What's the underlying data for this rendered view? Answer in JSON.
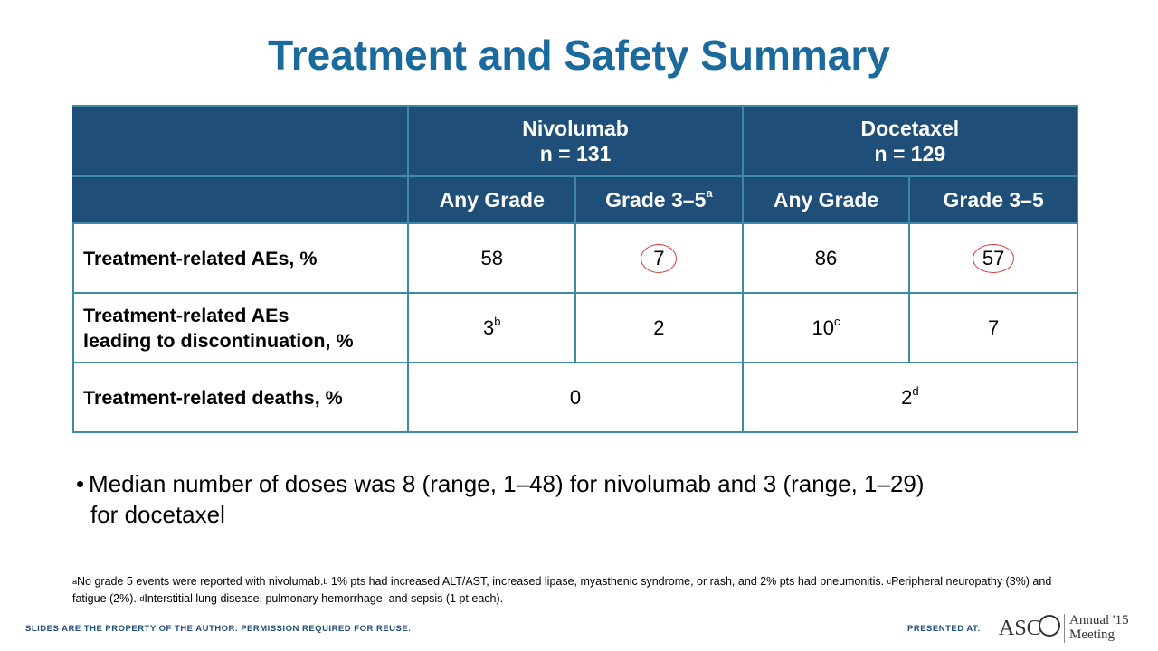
{
  "title": "Treatment and Safety Summary",
  "table": {
    "groups": [
      {
        "name": "Nivolumab",
        "n": "n = 131"
      },
      {
        "name": "Docetaxel",
        "n": "n = 129"
      }
    ],
    "subheaders": [
      {
        "text": "Any Grade",
        "sup": ""
      },
      {
        "text": "Grade 3–5",
        "sup": "a"
      },
      {
        "text": "Any Grade",
        "sup": ""
      },
      {
        "text": "Grade 3–5",
        "sup": ""
      }
    ],
    "rows": [
      {
        "label": "Treatment-related AEs, %",
        "cells": [
          {
            "v": "58",
            "sup": ""
          },
          {
            "v": "7",
            "sup": ""
          },
          {
            "v": "86",
            "sup": ""
          },
          {
            "v": "57",
            "sup": ""
          }
        ]
      },
      {
        "label_line1": "Treatment-related AEs",
        "label_line2": "leading to discontinuation, %",
        "cells": [
          {
            "v": "3",
            "sup": "b"
          },
          {
            "v": "2",
            "sup": ""
          },
          {
            "v": "10",
            "sup": "c"
          },
          {
            "v": "7",
            "sup": ""
          }
        ]
      },
      {
        "label": "Treatment-related deaths, %",
        "cells": [
          {
            "v": "0",
            "sup": ""
          },
          {
            "v": "2",
            "sup": "d"
          }
        ]
      }
    ]
  },
  "bullet": {
    "line1": "Median number of doses was 8 (range, 1–48) for nivolumab and 3 (range, 1–29)",
    "line2": "for docetaxel"
  },
  "footnotes": {
    "a": "No grade 5 events were reported with nivolumab.",
    "b": " 1% pts had increased ALT/AST,  increased lipase, myasthenic syndrome, or rash, and 2% pts had pneumonitis.",
    "c": "Peripheral neuropathy (3%) and fatigue (2%).",
    "d": "Interstitial lung disease, pulmonary hemorrhage, and sepsis (1 pt each)."
  },
  "footer": {
    "left": "SLIDES ARE THE PROPERTY OF THE AUTHOR. PERMISSION REQUIRED FOR REUSE.",
    "presented": "PRESENTED AT:",
    "logo_text": "ASC",
    "annual": "Annual '15",
    "meeting": "Meeting"
  },
  "colors": {
    "title": "#1a6a9e",
    "header_bg": "#1f4e79",
    "border": "#3d8aa6",
    "circle": "#d23a3a"
  }
}
